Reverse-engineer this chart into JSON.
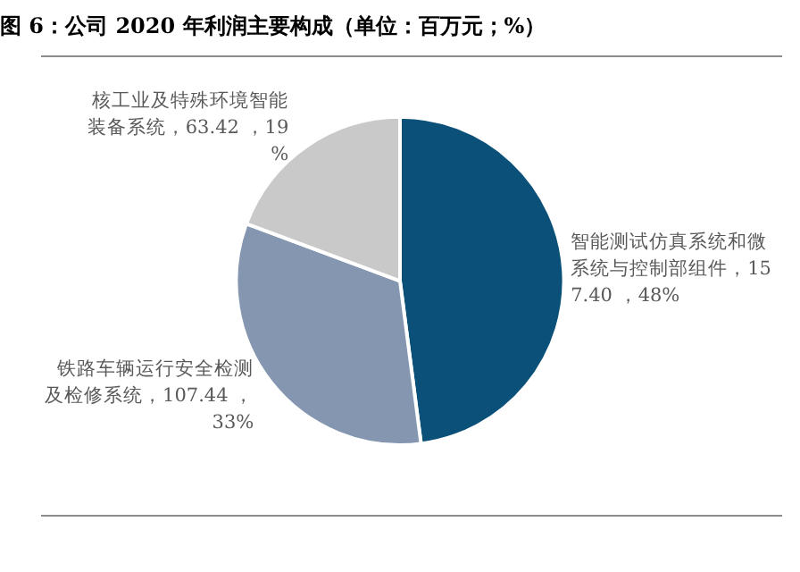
{
  "chart_data": {
    "type": "pie",
    "title": "图 6：公司 2020 年利润主要构成（单位：百万元；%）",
    "categories": [
      "智能测试仿真系统和微系统与控制部组件",
      "铁路车辆运行安全检测及检修系统",
      "核工业及特殊环境智能装备系统"
    ],
    "values": [
      157.4,
      107.44,
      63.42
    ],
    "value_labels": [
      "，157.40 ，48%",
      "，107.44 ，33%",
      "，63.42 ，19%"
    ],
    "colors": [
      "#0b5078",
      "#8496b0",
      "#c9c9c9"
    ],
    "legend": false
  }
}
